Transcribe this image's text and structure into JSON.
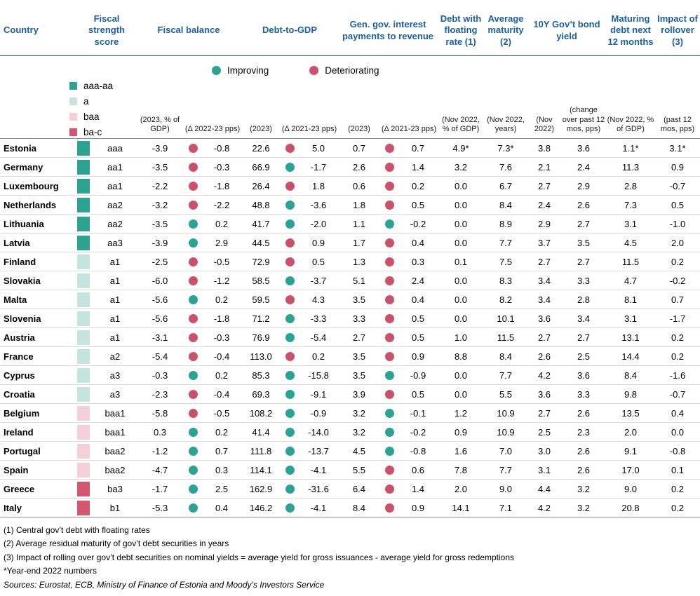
{
  "colors": {
    "header_blue": "#1a5fa8",
    "improving": "#2aa392",
    "deteriorating": "#cc5168",
    "band_aaa_aa": "#2aa392",
    "band_a": "#c6e4de",
    "band_baa": "#f4cfd8",
    "band_ba_c": "#d5566f"
  },
  "legend": {
    "improving": "Improving",
    "deteriorating": "Deteriorating",
    "bands": [
      {
        "key": "aaa_aa",
        "label": "aaa-aa"
      },
      {
        "key": "a",
        "label": "a"
      },
      {
        "key": "baa",
        "label": "baa"
      },
      {
        "key": "ba_c",
        "label": "ba-c"
      }
    ]
  },
  "chart_data": {
    "type": "table",
    "columns": {
      "country": "Country",
      "fiscal_strength": "Fiscal strength score",
      "fiscal_balance": "Fiscal balance",
      "debt_to_gdp": "Debt-to-GDP",
      "interest_payments": "Gen. gov. interest payments to revenue",
      "floating_rate": "Debt with floating rate (1)",
      "avg_maturity": "Average maturity (2)",
      "bond_yield": "10Y Gov’t bond yield",
      "maturing_debt": "Maturing debt next 12 months",
      "rollover": "Impact of rollover (3)"
    },
    "units": {
      "fb_level": "(2023, % of GDP)",
      "fb_delta": "(Δ 2022-23 pps)",
      "debt_level": "(2023)",
      "debt_delta": "(Δ 2021-23 pps)",
      "int_level": "(2023)",
      "int_delta": "(Δ 2021-23 pps)",
      "floating": "(Nov 2022, % of GDP)",
      "maturity": "(Nov 2022, years)",
      "yield_level": "(Nov 2022)",
      "yield_delta": "(change over past 12 mos, pps)",
      "maturing": "(Nov 2022, % of GDP)",
      "rollover": "(past 12 mos, pps)"
    },
    "rows": [
      {
        "country": "Estonia",
        "band": "aaa_aa",
        "score": "aaa",
        "fb": "-3.9",
        "fb_trend": "det",
        "fb_d": "-0.8",
        "debt": "22.6",
        "debt_trend": "det",
        "debt_d": "5.0",
        "ip": "0.7",
        "ip_trend": "det",
        "ip_d": "0.7",
        "floating": "4.9*",
        "maturity": "7.3*",
        "y10": "3.8",
        "y10_d": "3.6",
        "maturing": "1.1*",
        "rollover": "3.1*"
      },
      {
        "country": "Germany",
        "band": "aaa_aa",
        "score": "aa1",
        "fb": "-3.5",
        "fb_trend": "det",
        "fb_d": "-0.3",
        "debt": "66.9",
        "debt_trend": "imp",
        "debt_d": "-1.7",
        "ip": "2.6",
        "ip_trend": "det",
        "ip_d": "1.4",
        "floating": "3.2",
        "maturity": "7.6",
        "y10": "2.1",
        "y10_d": "2.4",
        "maturing": "11.3",
        "rollover": "0.9"
      },
      {
        "country": "Luxembourg",
        "band": "aaa_aa",
        "score": "aa1",
        "fb": "-2.2",
        "fb_trend": "det",
        "fb_d": "-1.8",
        "debt": "26.4",
        "debt_trend": "det",
        "debt_d": "1.8",
        "ip": "0.6",
        "ip_trend": "det",
        "ip_d": "0.2",
        "floating": "0.0",
        "maturity": "6.7",
        "y10": "2.7",
        "y10_d": "2.9",
        "maturing": "2.8",
        "rollover": "-0.7"
      },
      {
        "country": "Netherlands",
        "band": "aaa_aa",
        "score": "aa2",
        "fb": "-3.2",
        "fb_trend": "det",
        "fb_d": "-2.2",
        "debt": "48.8",
        "debt_trend": "imp",
        "debt_d": "-3.6",
        "ip": "1.8",
        "ip_trend": "det",
        "ip_d": "0.5",
        "floating": "0.0",
        "maturity": "8.4",
        "y10": "2.4",
        "y10_d": "2.6",
        "maturing": "7.3",
        "rollover": "0.5"
      },
      {
        "country": "Lithuania",
        "band": "aaa_aa",
        "score": "aa2",
        "fb": "-3.5",
        "fb_trend": "imp",
        "fb_d": "0.2",
        "debt": "41.7",
        "debt_trend": "imp",
        "debt_d": "-2.0",
        "ip": "1.1",
        "ip_trend": "imp",
        "ip_d": "-0.2",
        "floating": "0.0",
        "maturity": "8.9",
        "y10": "2.9",
        "y10_d": "2.7",
        "maturing": "3.1",
        "rollover": "-1.0"
      },
      {
        "country": "Latvia",
        "band": "aaa_aa",
        "score": "aa3",
        "fb": "-3.9",
        "fb_trend": "imp",
        "fb_d": "2.9",
        "debt": "44.5",
        "debt_trend": "det",
        "debt_d": "0.9",
        "ip": "1.7",
        "ip_trend": "det",
        "ip_d": "0.4",
        "floating": "0.0",
        "maturity": "7.7",
        "y10": "3.7",
        "y10_d": "3.5",
        "maturing": "4.5",
        "rollover": "2.0"
      },
      {
        "country": "Finland",
        "band": "a",
        "score": "a1",
        "fb": "-2.5",
        "fb_trend": "det",
        "fb_d": "-0.5",
        "debt": "72.9",
        "debt_trend": "det",
        "debt_d": "0.5",
        "ip": "1.3",
        "ip_trend": "det",
        "ip_d": "0.3",
        "floating": "0.1",
        "maturity": "7.5",
        "y10": "2.7",
        "y10_d": "2.7",
        "maturing": "11.5",
        "rollover": "0.2"
      },
      {
        "country": "Slovakia",
        "band": "a",
        "score": "a1",
        "fb": "-6.0",
        "fb_trend": "det",
        "fb_d": "-1.2",
        "debt": "58.5",
        "debt_trend": "imp",
        "debt_d": "-3.7",
        "ip": "5.1",
        "ip_trend": "det",
        "ip_d": "2.4",
        "floating": "0.0",
        "maturity": "8.3",
        "y10": "3.4",
        "y10_d": "3.3",
        "maturing": "4.7",
        "rollover": "-0.2"
      },
      {
        "country": "Malta",
        "band": "a",
        "score": "a1",
        "fb": "-5.6",
        "fb_trend": "imp",
        "fb_d": "0.2",
        "debt": "59.5",
        "debt_trend": "det",
        "debt_d": "4.3",
        "ip": "3.5",
        "ip_trend": "det",
        "ip_d": "0.4",
        "floating": "0.0",
        "maturity": "8.2",
        "y10": "3.4",
        "y10_d": "2.8",
        "maturing": "8.1",
        "rollover": "0.7"
      },
      {
        "country": "Slovenia",
        "band": "a",
        "score": "a1",
        "fb": "-5.6",
        "fb_trend": "det",
        "fb_d": "-1.8",
        "debt": "71.2",
        "debt_trend": "imp",
        "debt_d": "-3.3",
        "ip": "3.3",
        "ip_trend": "det",
        "ip_d": "0.5",
        "floating": "0.0",
        "maturity": "10.1",
        "y10": "3.6",
        "y10_d": "3.4",
        "maturing": "3.1",
        "rollover": "-1.7"
      },
      {
        "country": "Austria",
        "band": "a",
        "score": "a1",
        "fb": "-3.1",
        "fb_trend": "det",
        "fb_d": "-0.3",
        "debt": "76.9",
        "debt_trend": "imp",
        "debt_d": "-5.4",
        "ip": "2.7",
        "ip_trend": "det",
        "ip_d": "0.5",
        "floating": "1.0",
        "maturity": "11.5",
        "y10": "2.7",
        "y10_d": "2.7",
        "maturing": "13.1",
        "rollover": "0.2"
      },
      {
        "country": "France",
        "band": "a",
        "score": "a2",
        "fb": "-5.4",
        "fb_trend": "det",
        "fb_d": "-0.4",
        "debt": "113.0",
        "debt_trend": "det",
        "debt_d": "0.2",
        "ip": "3.5",
        "ip_trend": "det",
        "ip_d": "0.9",
        "floating": "8.8",
        "maturity": "8.4",
        "y10": "2.6",
        "y10_d": "2.5",
        "maturing": "14.4",
        "rollover": "0.2"
      },
      {
        "country": "Cyprus",
        "band": "a",
        "score": "a3",
        "fb": "-0.3",
        "fb_trend": "imp",
        "fb_d": "0.2",
        "debt": "85.3",
        "debt_trend": "imp",
        "debt_d": "-15.8",
        "ip": "3.5",
        "ip_trend": "imp",
        "ip_d": "-0.9",
        "floating": "0.0",
        "maturity": "7.7",
        "y10": "4.2",
        "y10_d": "3.6",
        "maturing": "8.4",
        "rollover": "-1.6"
      },
      {
        "country": "Croatia",
        "band": "a",
        "score": "a3",
        "fb": "-2.3",
        "fb_trend": "det",
        "fb_d": "-0.4",
        "debt": "69.3",
        "debt_trend": "imp",
        "debt_d": "-9.1",
        "ip": "3.9",
        "ip_trend": "det",
        "ip_d": "0.5",
        "floating": "0.0",
        "maturity": "5.5",
        "y10": "3.6",
        "y10_d": "3.3",
        "maturing": "9.8",
        "rollover": "-0.7"
      },
      {
        "country": "Belgium",
        "band": "baa",
        "score": "baa1",
        "fb": "-5.8",
        "fb_trend": "det",
        "fb_d": "-0.5",
        "debt": "108.2",
        "debt_trend": "imp",
        "debt_d": "-0.9",
        "ip": "3.2",
        "ip_trend": "imp",
        "ip_d": "-0.1",
        "floating": "1.2",
        "maturity": "10.9",
        "y10": "2.7",
        "y10_d": "2.6",
        "maturing": "13.5",
        "rollover": "0.4"
      },
      {
        "country": "Ireland",
        "band": "baa",
        "score": "baa1",
        "fb": "0.3",
        "fb_trend": "imp",
        "fb_d": "0.2",
        "debt": "41.4",
        "debt_trend": "imp",
        "debt_d": "-14.0",
        "ip": "3.2",
        "ip_trend": "imp",
        "ip_d": "-0.2",
        "floating": "0.9",
        "maturity": "10.9",
        "y10": "2.5",
        "y10_d": "2.3",
        "maturing": "2.0",
        "rollover": "0.0"
      },
      {
        "country": "Portugal",
        "band": "baa",
        "score": "baa2",
        "fb": "-1.2",
        "fb_trend": "imp",
        "fb_d": "0.7",
        "debt": "111.8",
        "debt_trend": "imp",
        "debt_d": "-13.7",
        "ip": "4.5",
        "ip_trend": "imp",
        "ip_d": "-0.8",
        "floating": "1.6",
        "maturity": "7.0",
        "y10": "3.0",
        "y10_d": "2.6",
        "maturing": "9.1",
        "rollover": "-0.8"
      },
      {
        "country": "Spain",
        "band": "baa",
        "score": "baa2",
        "fb": "-4.7",
        "fb_trend": "imp",
        "fb_d": "0.3",
        "debt": "114.1",
        "debt_trend": "imp",
        "debt_d": "-4.1",
        "ip": "5.5",
        "ip_trend": "det",
        "ip_d": "0.6",
        "floating": "7.8",
        "maturity": "7.7",
        "y10": "3.1",
        "y10_d": "2.6",
        "maturing": "17.0",
        "rollover": "0.1"
      },
      {
        "country": "Greece",
        "band": "ba_c",
        "score": "ba3",
        "fb": "-1.7",
        "fb_trend": "imp",
        "fb_d": "2.5",
        "debt": "162.9",
        "debt_trend": "imp",
        "debt_d": "-31.6",
        "ip": "6.4",
        "ip_trend": "det",
        "ip_d": "1.4",
        "floating": "2.0",
        "maturity": "9.0",
        "y10": "4.4",
        "y10_d": "3.2",
        "maturing": "9.0",
        "rollover": "0.2"
      },
      {
        "country": "Italy",
        "band": "ba_c",
        "score": "b1",
        "fb": "-5.3",
        "fb_trend": "imp",
        "fb_d": "0.4",
        "debt": "146.2",
        "debt_trend": "imp",
        "debt_d": "-4.1",
        "ip": "8.4",
        "ip_trend": "det",
        "ip_d": "0.9",
        "floating": "14.1",
        "maturity": "7.1",
        "y10": "4.2",
        "y10_d": "3.2",
        "maturing": "20.8",
        "rollover": "0.2"
      }
    ]
  },
  "footnotes": [
    "(1) Central gov’t debt with floating rates",
    "(2) Average residual maturity of gov’t debt securities in years",
    "(3) Impact of rolling over gov’t debt securities on nominal yields = average yield for gross issuances - average yield for gross redemptions",
    "*Year-end 2022 numbers"
  ],
  "sources": "Sources: Eurostat, ECB, Ministry of Finance of Estonia and Moody’s Investors Service"
}
